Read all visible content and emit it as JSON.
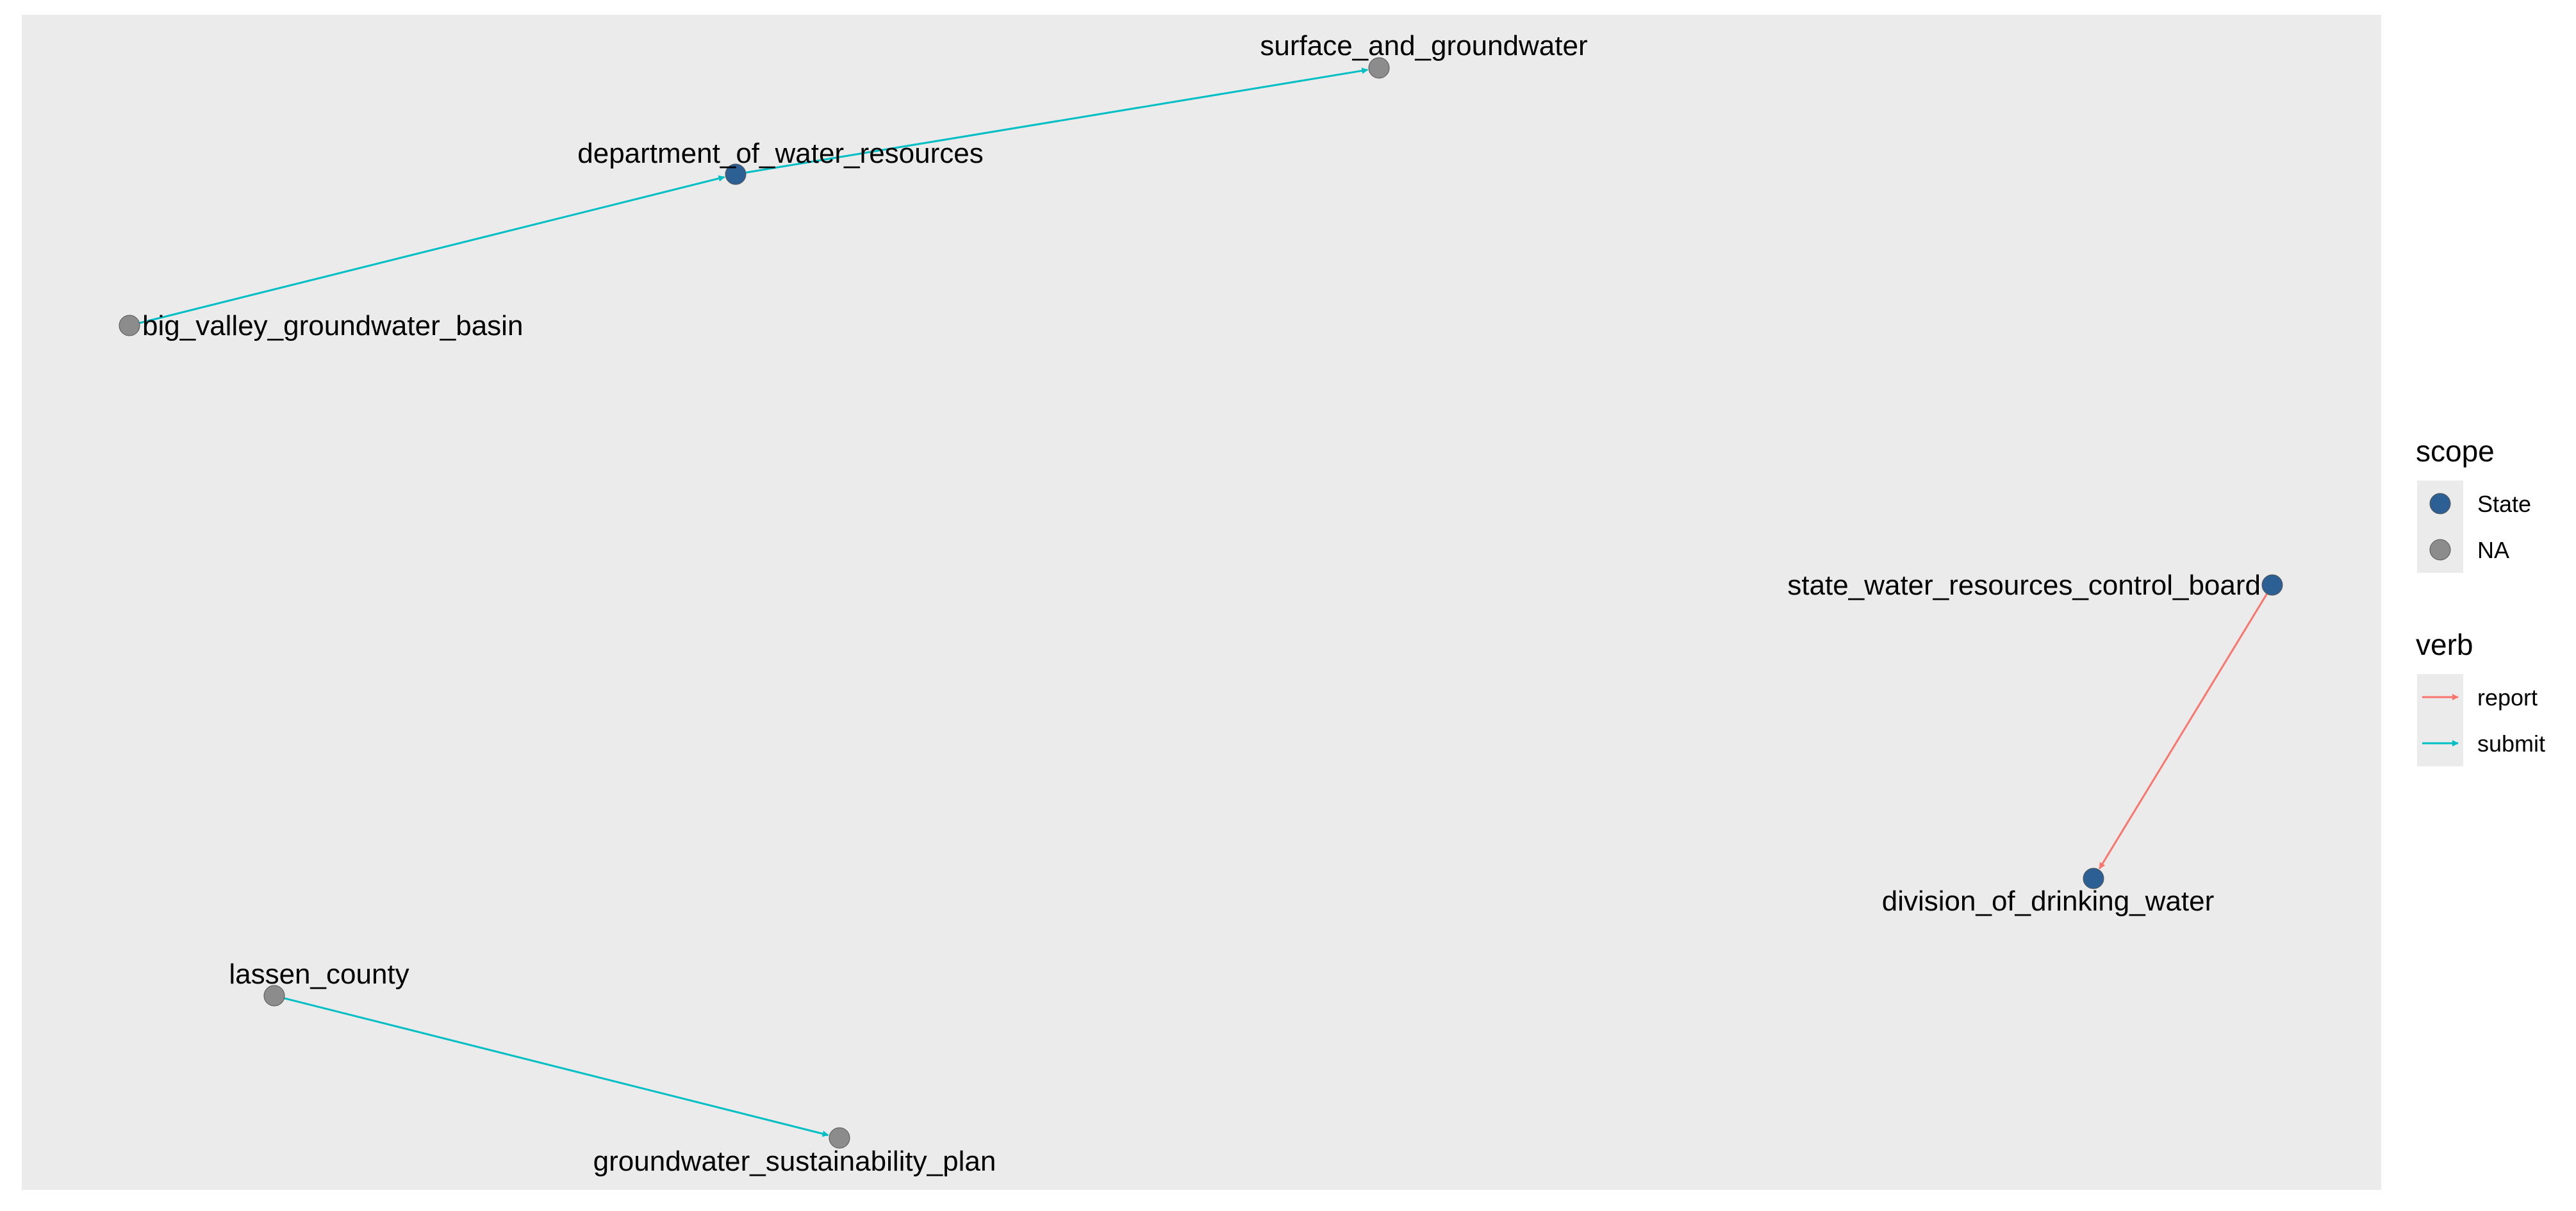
{
  "colors": {
    "panel_background": "#EBEBEB",
    "scope_state": "#2C5F94",
    "scope_na": "#8C8C8C",
    "verb_report": "#F8766D",
    "verb_submit": "#00BFC4"
  },
  "nodes": [
    {
      "id": "surface_and_groundwater",
      "label": "surface_and_groundwater",
      "scope": "NA"
    },
    {
      "id": "department_of_water_resources",
      "label": "department_of_water_resources",
      "scope": "State"
    },
    {
      "id": "big_valley_groundwater_basin",
      "label": "big_valley_groundwater_basin",
      "scope": "NA"
    },
    {
      "id": "state_water_resources_control_board",
      "label": "state_water_resources_control_board",
      "scope": "State"
    },
    {
      "id": "division_of_drinking_water",
      "label": "division_of_drinking_water",
      "scope": "State"
    },
    {
      "id": "lassen_county",
      "label": "lassen_county",
      "scope": "NA"
    },
    {
      "id": "groundwater_sustainability_plan",
      "label": "groundwater_sustainability_plan",
      "scope": "NA"
    }
  ],
  "edges": [
    {
      "from": "big_valley_groundwater_basin",
      "to": "department_of_water_resources",
      "verb": "submit"
    },
    {
      "from": "department_of_water_resources",
      "to": "surface_and_groundwater",
      "verb": "submit"
    },
    {
      "from": "state_water_resources_control_board",
      "to": "division_of_drinking_water",
      "verb": "report"
    },
    {
      "from": "lassen_county",
      "to": "groundwater_sustainability_plan",
      "verb": "submit"
    }
  ],
  "legend": {
    "scope": {
      "title": "scope",
      "items": [
        {
          "label": "State",
          "color_key": "scope_state"
        },
        {
          "label": "NA",
          "color_key": "scope_na"
        }
      ]
    },
    "verb": {
      "title": "verb",
      "items": [
        {
          "label": "report",
          "color_key": "verb_report"
        },
        {
          "label": "submit",
          "color_key": "verb_submit"
        }
      ]
    }
  }
}
